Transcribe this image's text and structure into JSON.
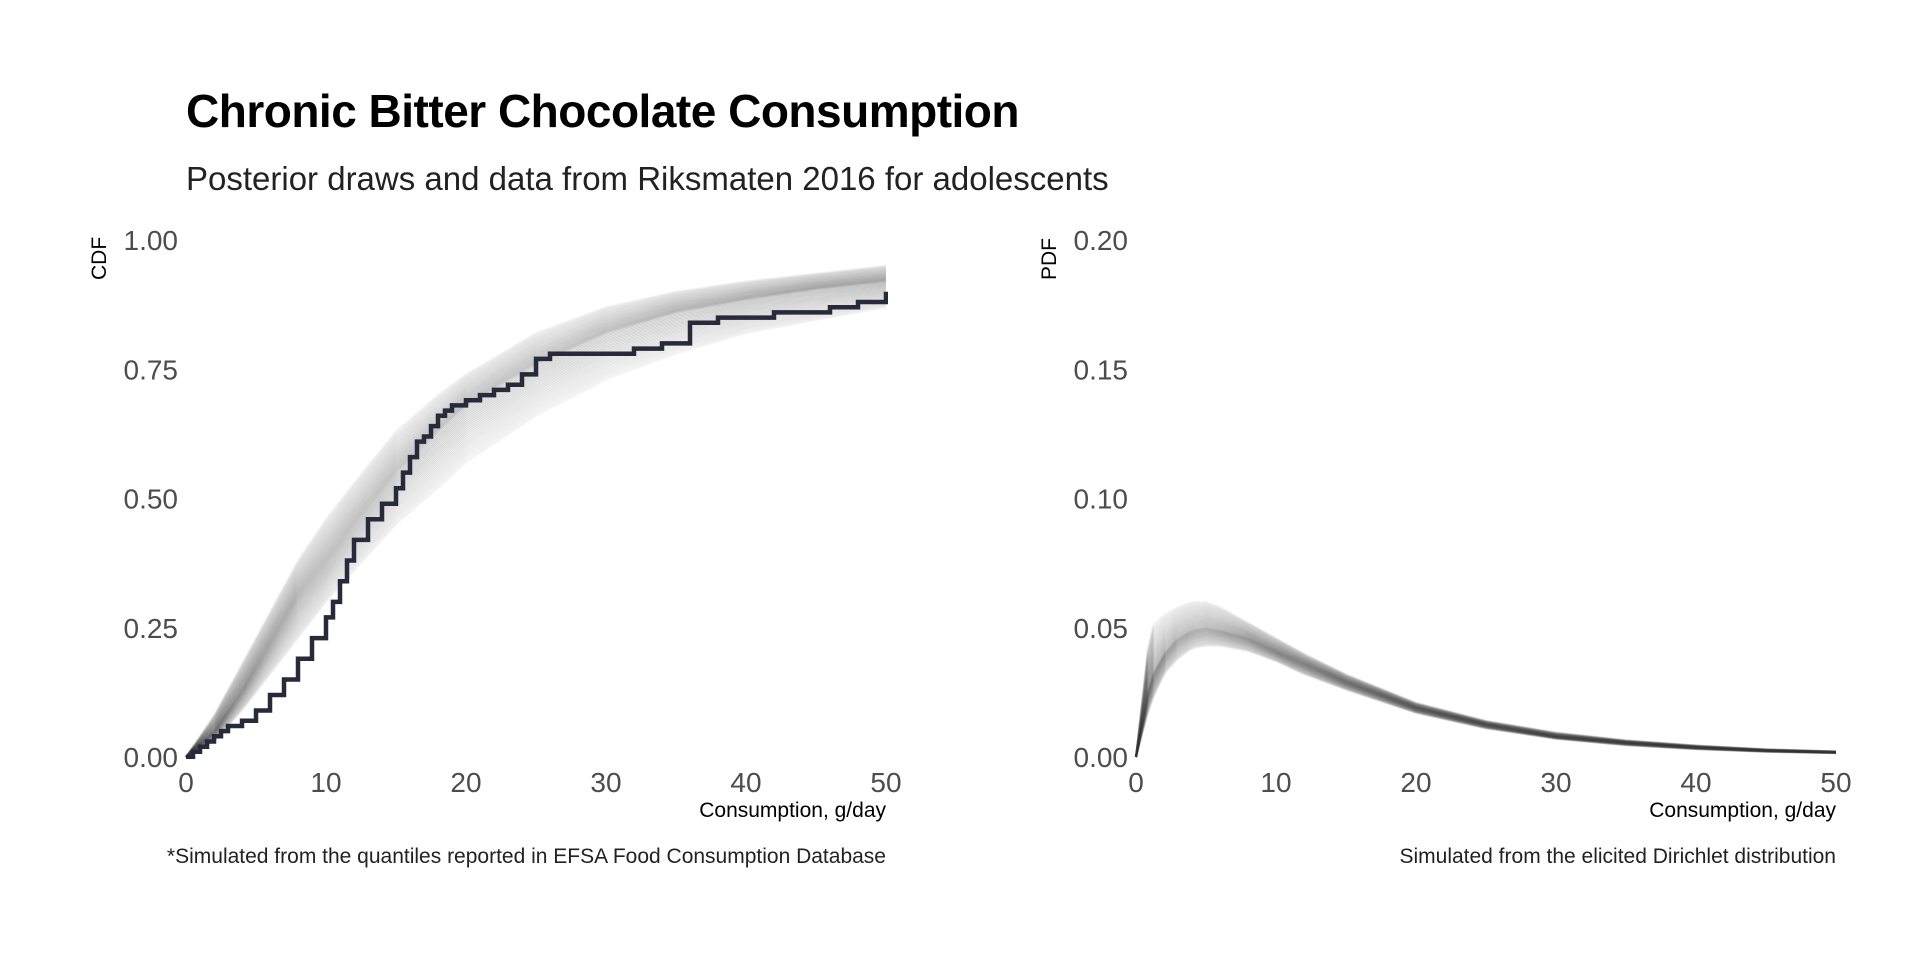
{
  "title": "Chronic Bitter Chocolate Consumption",
  "subtitle": "Posterior draws and data from Riksmaten 2016 for adolescents",
  "colors": {
    "draws": "#3a3a3a",
    "data_line": "#262a3a",
    "text": "#000000",
    "tick": "#4d4d4d"
  },
  "chart_data": [
    {
      "type": "line",
      "panel": "left",
      "xlabel": "Consumption, g/day",
      "ylabel": "CDF",
      "xlim": [
        0,
        50
      ],
      "ylim": [
        0,
        1
      ],
      "xticks": [
        0,
        10,
        20,
        30,
        40,
        50
      ],
      "yticks": [
        "0.00",
        "0.25",
        "0.50",
        "0.75",
        "1.00"
      ],
      "caption": "*Simulated from the quantiles reported in EFSA Food Consumption Database",
      "grid": false,
      "series": [
        {
          "kind": "posterior_draws_band",
          "x": [
            0,
            2,
            4,
            6,
            8,
            10,
            12,
            15,
            18,
            20,
            25,
            30,
            35,
            40,
            45,
            50
          ],
          "y_low": [
            0,
            0.03,
            0.09,
            0.16,
            0.23,
            0.3,
            0.36,
            0.45,
            0.52,
            0.57,
            0.66,
            0.73,
            0.78,
            0.82,
            0.845,
            0.87
          ],
          "y_mid": [
            0,
            0.05,
            0.13,
            0.22,
            0.31,
            0.38,
            0.45,
            0.55,
            0.63,
            0.68,
            0.76,
            0.82,
            0.86,
            0.885,
            0.905,
            0.92
          ],
          "y_high": [
            0,
            0.08,
            0.18,
            0.28,
            0.38,
            0.46,
            0.53,
            0.63,
            0.7,
            0.74,
            0.82,
            0.87,
            0.9,
            0.92,
            0.935,
            0.95
          ]
        },
        {
          "kind": "empirical_cdf",
          "x": [
            0,
            0.5,
            1,
            1.5,
            2,
            2.5,
            3,
            4,
            5,
            6,
            7,
            8,
            9,
            10,
            10.5,
            11,
            11.5,
            12,
            13,
            14,
            15,
            15.5,
            16,
            16.5,
            17,
            17.5,
            18,
            18.5,
            19,
            20,
            21,
            22,
            23,
            24,
            25,
            26,
            28,
            30,
            32,
            34,
            36,
            38,
            40,
            42,
            44,
            46,
            48,
            50
          ],
          "y": [
            0,
            0.01,
            0.02,
            0.03,
            0.04,
            0.05,
            0.06,
            0.07,
            0.09,
            0.12,
            0.15,
            0.19,
            0.23,
            0.27,
            0.3,
            0.34,
            0.38,
            0.42,
            0.46,
            0.49,
            0.52,
            0.55,
            0.58,
            0.61,
            0.62,
            0.64,
            0.66,
            0.67,
            0.68,
            0.69,
            0.7,
            0.71,
            0.72,
            0.74,
            0.77,
            0.78,
            0.78,
            0.78,
            0.79,
            0.8,
            0.84,
            0.85,
            0.85,
            0.86,
            0.86,
            0.87,
            0.88,
            0.9
          ]
        }
      ]
    },
    {
      "type": "line",
      "panel": "right",
      "xlabel": "Consumption, g/day",
      "ylabel": "PDF",
      "xlim": [
        0,
        50
      ],
      "ylim": [
        0,
        0.2
      ],
      "xticks": [
        0,
        10,
        20,
        30,
        40,
        50
      ],
      "yticks": [
        "0.00",
        "0.05",
        "0.10",
        "0.15",
        "0.20"
      ],
      "caption": "Simulated from the elicited Dirichlet distribution",
      "grid": false,
      "series": [
        {
          "kind": "posterior_draws_band",
          "x": [
            0,
            1,
            2,
            3,
            4,
            5,
            6,
            8,
            10,
            12,
            15,
            20,
            25,
            30,
            35,
            40,
            45,
            50
          ],
          "y_low": [
            0,
            0.02,
            0.032,
            0.038,
            0.042,
            0.043,
            0.043,
            0.041,
            0.037,
            0.032,
            0.026,
            0.017,
            0.011,
            0.007,
            0.0045,
            0.003,
            0.002,
            0.0015
          ],
          "y_mid": [
            0,
            0.03,
            0.04,
            0.046,
            0.049,
            0.05,
            0.049,
            0.046,
            0.041,
            0.036,
            0.029,
            0.019,
            0.0125,
            0.008,
            0.0055,
            0.0037,
            0.0025,
            0.0018
          ],
          "y_high": [
            0,
            0.05,
            0.055,
            0.058,
            0.06,
            0.06,
            0.058,
            0.052,
            0.046,
            0.04,
            0.032,
            0.021,
            0.014,
            0.0095,
            0.0065,
            0.0045,
            0.003,
            0.0022
          ]
        }
      ]
    }
  ]
}
